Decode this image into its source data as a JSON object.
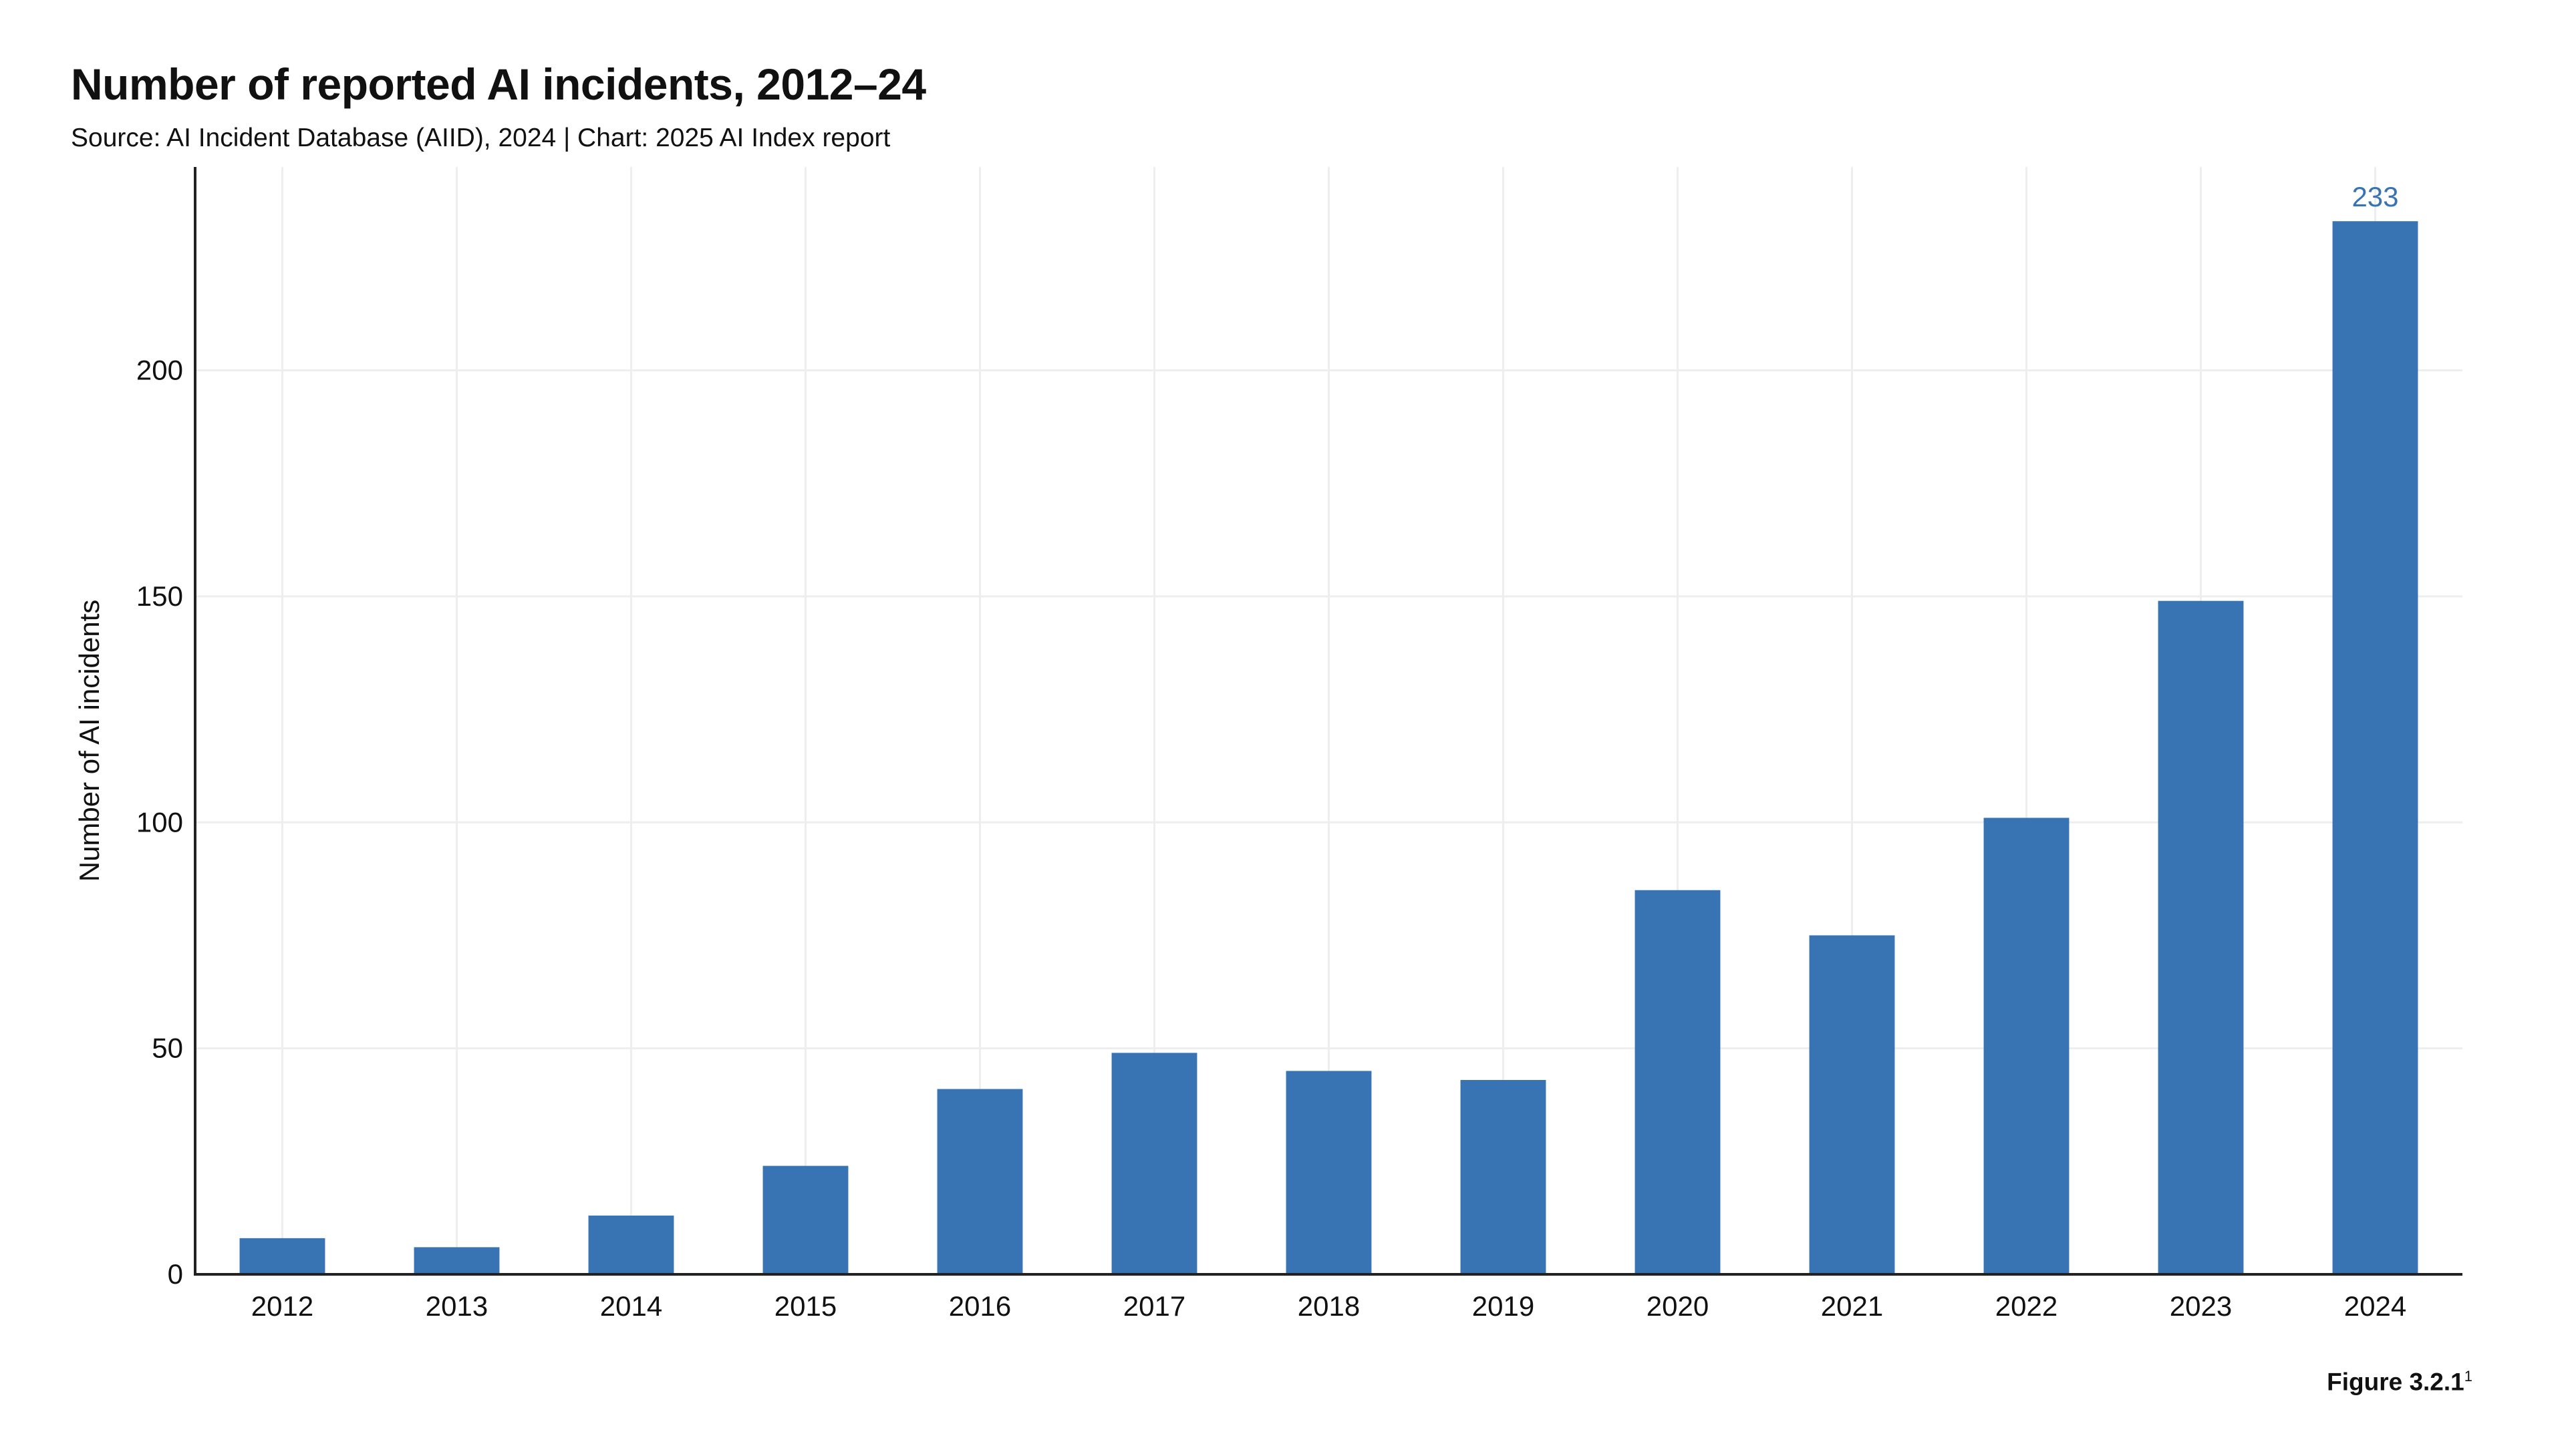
{
  "header": {
    "title": "Number of reported AI incidents, 2012–24",
    "subtitle": "Source: AI Incident Database (AIID), 2024 | Chart: 2025 AI Index report"
  },
  "footer": {
    "figure_label": "Figure 3.2.1",
    "figure_note_marker": "1"
  },
  "chart_data": {
    "type": "bar",
    "title": "Number of reported AI incidents, 2012–24",
    "xlabel": "",
    "ylabel": "Number of AI incidents",
    "categories": [
      "2012",
      "2013",
      "2014",
      "2015",
      "2016",
      "2017",
      "2018",
      "2019",
      "2020",
      "2021",
      "2022",
      "2023",
      "2024"
    ],
    "values": [
      8,
      6,
      13,
      24,
      41,
      49,
      45,
      43,
      85,
      75,
      101,
      149,
      233
    ],
    "ylim": [
      0,
      245
    ],
    "yticks": [
      0,
      50,
      100,
      150,
      200
    ],
    "grid": true,
    "data_labels": [
      {
        "category": "2024",
        "text": "233"
      }
    ],
    "colors": {
      "bar": "#3873b3",
      "data_label": "#3873b3",
      "grid": "#eeeeee",
      "axis": "#222222"
    }
  }
}
